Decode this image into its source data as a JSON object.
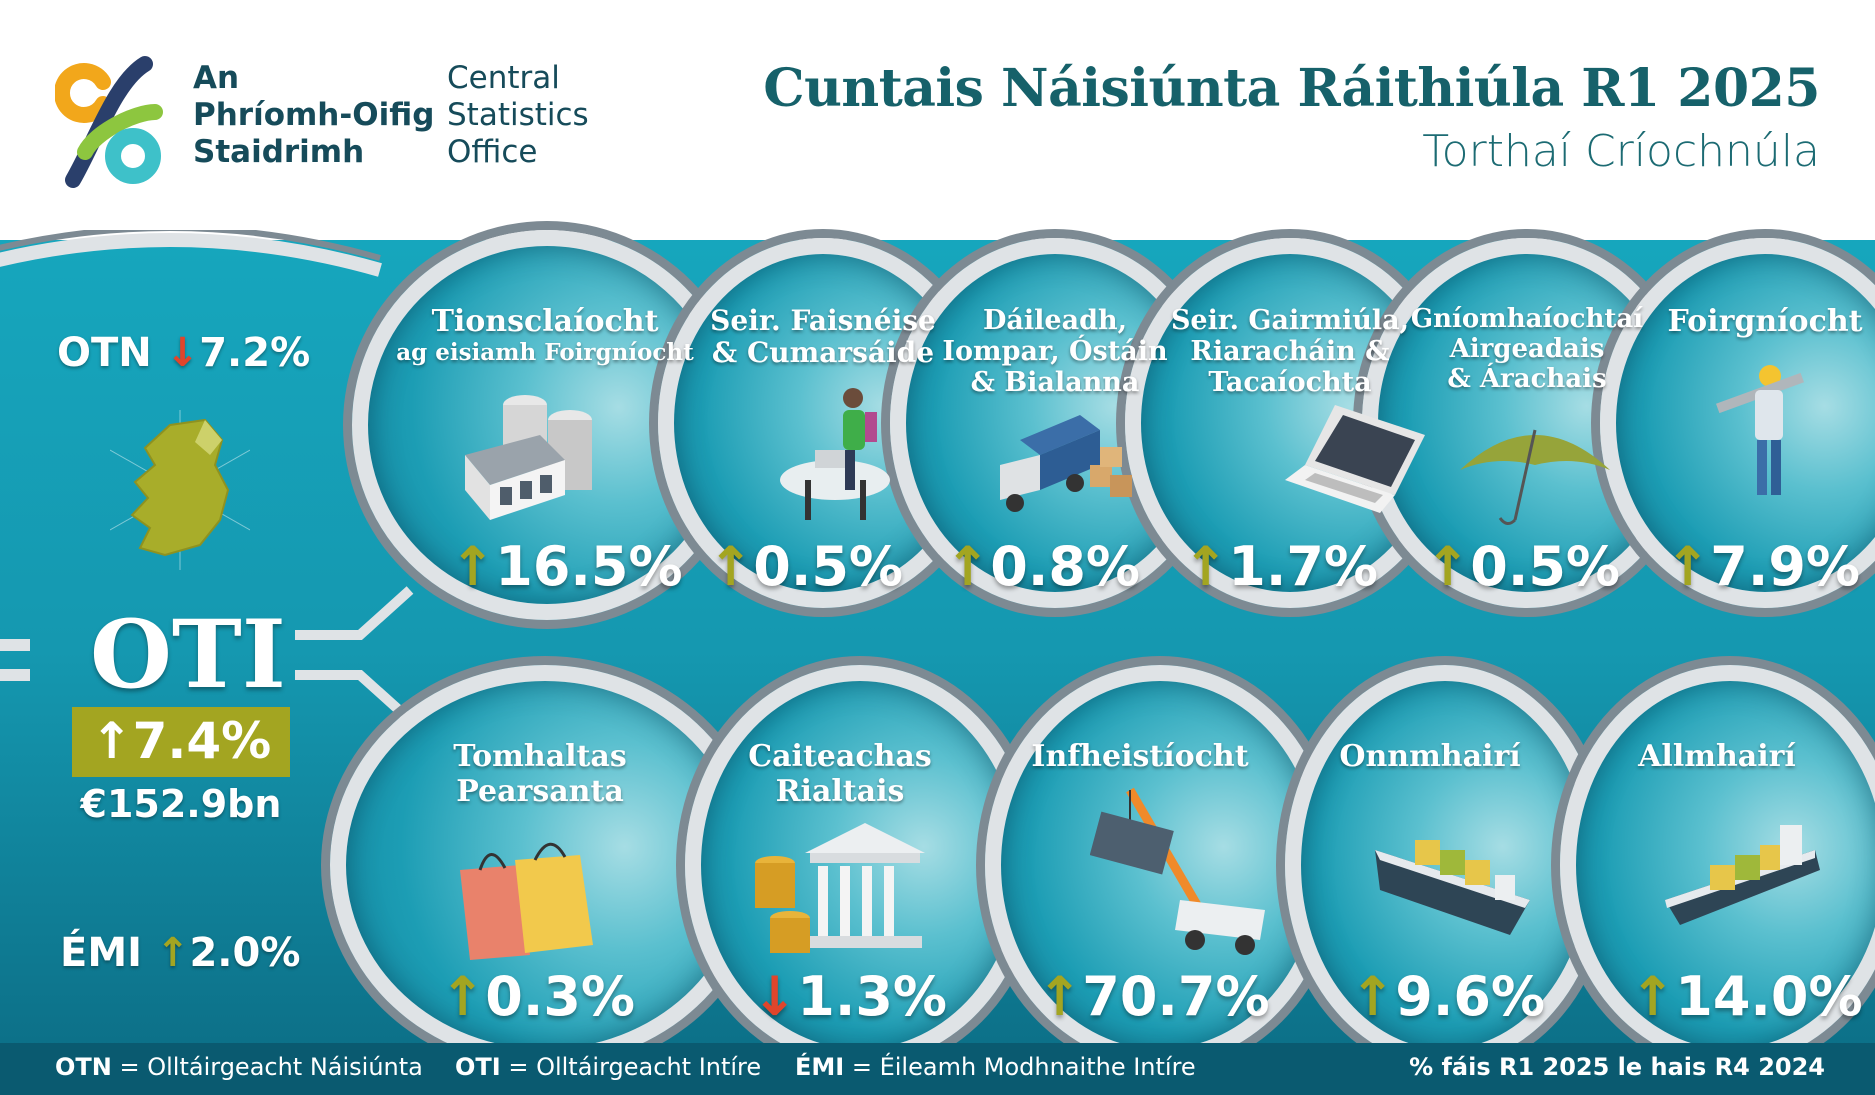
{
  "logo": {
    "irish_line1": "An",
    "irish_line2": "Phríomh-Oifig",
    "irish_line3": "Staidrimh",
    "english_line1": "Central",
    "english_line2": "Statistics",
    "english_line3": "Office"
  },
  "header": {
    "title": "Cuntais Náisiúnta Ráithiúla R1 2025",
    "subtitle": "Torthaí Críochnúla"
  },
  "summary": {
    "otn_label": "OTN",
    "otn_arrow": "↓",
    "otn_value": "7.2%",
    "oti_label": "OTI",
    "oti_arrow": "↑",
    "oti_value": "7.4%",
    "oti_amount": "€152.9bn",
    "emi_label": "ÉMI",
    "emi_arrow": "↑",
    "emi_value": "2.0%"
  },
  "sectors_top": [
    {
      "l1": "Tionsclaíocht",
      "l2": "ag eisiamh Foirgníocht",
      "l3": "",
      "arrow": "↑",
      "value": "16.5%",
      "icon": "factory-icon"
    },
    {
      "l1": "Seir. Faisnéise",
      "l2": "& Cumarsáide",
      "l3": "",
      "arrow": "↑",
      "value": "0.5%",
      "icon": "computer-user-icon"
    },
    {
      "l1": "Dáileadh,",
      "l2": "Iompar, Óstáin",
      "l3": "& Bialanna",
      "arrow": "↑",
      "value": "0.8%",
      "icon": "truck-icon"
    },
    {
      "l1": "Seir. Gairmiúla,",
      "l2": "Riaracháin &",
      "l3": "Tacaíochta",
      "arrow": "↑",
      "value": "1.7%",
      "icon": "laptop-icon"
    },
    {
      "l1": "Gníomhaíochtaí",
      "l2": "Airgeadais",
      "l3": "& Árachais",
      "arrow": "↑",
      "value": "0.5%",
      "icon": "umbrella-icon"
    },
    {
      "l1": "Foirgníocht",
      "l2": "",
      "l3": "",
      "arrow": "↑",
      "value": "7.9%",
      "icon": "construction-worker-icon"
    }
  ],
  "sectors_bottom": [
    {
      "l1": "Tomhaltas",
      "l2": "Pearsanta",
      "arrow": "↑",
      "value": "0.3%",
      "icon": "shopping-bags-icon"
    },
    {
      "l1": "Caiteachas",
      "l2": "Rialtais",
      "arrow": "↓",
      "value": "1.3%",
      "icon": "government-building-icon"
    },
    {
      "l1": "Infheistíocht",
      "l2": "",
      "arrow": "↑",
      "value": "70.7%",
      "icon": "crane-icon"
    },
    {
      "l1": "Onnmhairí",
      "l2": "",
      "arrow": "↑",
      "value": "9.6%",
      "icon": "cargo-ship-icon"
    },
    {
      "l1": "Allmhairí",
      "l2": "",
      "arrow": "↑",
      "value": "14.0%",
      "icon": "cargo-ship-icon"
    }
  ],
  "footer": {
    "otn_abbr": "OTN",
    "otn_def": "= Olltáirgeacht Náisiúnta",
    "oti_abbr": "OTI",
    "oti_def": "= Olltáirgeacht Intíre",
    "emi_abbr": "ÉMI",
    "emi_def": "= Éileamh Modhnaithe Intíre",
    "note": "% fáis R1 2025 le hais R4 2024"
  },
  "colors": {
    "teal_dark": "#164b5a",
    "band": "#1598b0",
    "up": "#a3a521",
    "down": "#e0452b"
  }
}
